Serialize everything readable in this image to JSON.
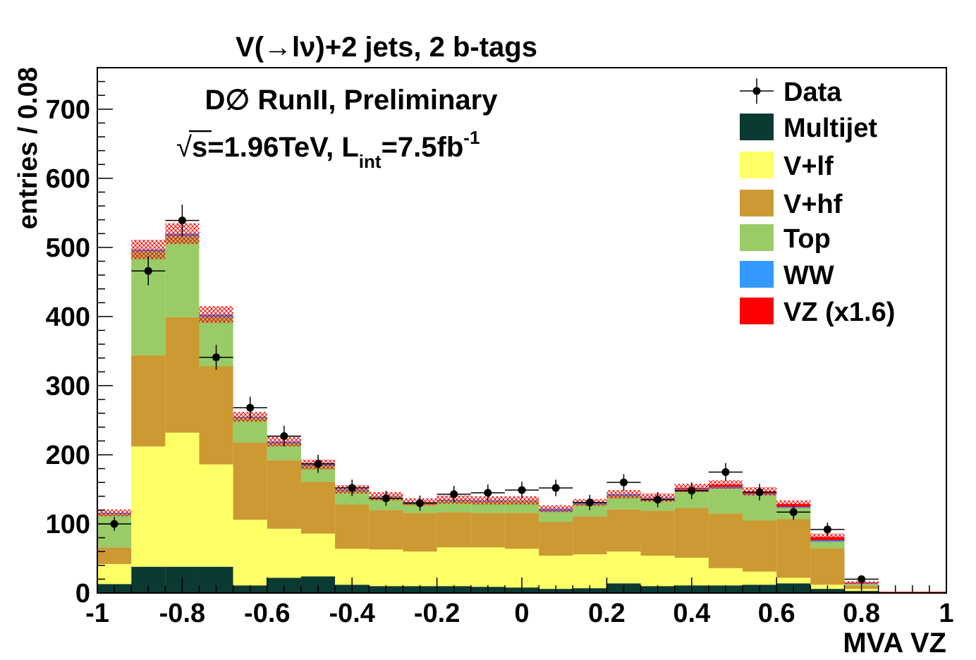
{
  "chart_data": {
    "type": "bar",
    "stacked": true,
    "title": "V(→lν)+2 jets, 2 b-tags",
    "experiment": "D∅ RunII, Preliminary",
    "energy": {
      "sqrt": "√",
      "main": "s=1.96TeV, L",
      "sub": "int",
      "mid": "=7.5fb",
      "sup": "-1"
    },
    "xlabel": "MVA VZ",
    "ylabel": "entries / 0.08",
    "xlim": [
      -1,
      1
    ],
    "ylim": [
      0,
      760
    ],
    "x_ticks": [
      "-1",
      "-0.8",
      "-0.6",
      "-0.4",
      "-0.2",
      "0",
      "0.2",
      "0.4",
      "0.6",
      "0.8",
      "1"
    ],
    "y_ticks": [
      "0",
      "100",
      "200",
      "300",
      "400",
      "500",
      "600",
      "700"
    ],
    "bin_width": 0.08,
    "bin_low_edges": [
      -1.0,
      -0.92,
      -0.84,
      -0.76,
      -0.68,
      -0.6,
      -0.52,
      -0.44,
      -0.36,
      -0.28,
      -0.2,
      -0.12,
      -0.04,
      0.04,
      0.12,
      0.2,
      0.28,
      0.36,
      0.44,
      0.52,
      0.6,
      0.68,
      0.76,
      0.84,
      0.92
    ],
    "series": [
      {
        "name": "Multijet",
        "color": "#0b3a32",
        "values": [
          13,
          38,
          38,
          38,
          11,
          22,
          24,
          12,
          10,
          10,
          10,
          9,
          8,
          6,
          7,
          14,
          10,
          11,
          11,
          12,
          14,
          6,
          3,
          0,
          0
        ]
      },
      {
        "name": "V+lf",
        "color": "#ffff66",
        "values": [
          29,
          174,
          194,
          148,
          95,
          71,
          62,
          52,
          53,
          50,
          56,
          57,
          56,
          48,
          49,
          46,
          44,
          40,
          25,
          19,
          8,
          6,
          3,
          0,
          0
        ]
      },
      {
        "name": "V+hf",
        "color": "#cc9933",
        "values": [
          24,
          132,
          167,
          142,
          112,
          99,
          75,
          64,
          57,
          56,
          51,
          50,
          52,
          49,
          55,
          61,
          65,
          72,
          79,
          74,
          85,
          53,
          5,
          0,
          0
        ]
      },
      {
        "name": "Top",
        "color": "#99cc66",
        "values": [
          48,
          150,
          117,
          71,
          35,
          24,
          23,
          20,
          19,
          15,
          16,
          16,
          17,
          15,
          17,
          19,
          17,
          25,
          36,
          37,
          16,
          9,
          2,
          0,
          0
        ]
      },
      {
        "name": "WW",
        "color": "#3399ff",
        "values": [
          2,
          3,
          4,
          4,
          2,
          3,
          2,
          2,
          1,
          1,
          2,
          2,
          1,
          4,
          3,
          3,
          2,
          3,
          3,
          2,
          2,
          2,
          1,
          0,
          0
        ]
      },
      {
        "name": "VZ (x1.6)",
        "color": "#ff0000",
        "values": [
          0,
          0,
          0,
          0,
          0,
          0,
          0,
          0,
          0,
          0,
          0,
          0,
          0,
          0,
          0,
          0,
          0,
          1,
          3,
          3,
          4,
          5,
          1,
          0,
          0
        ]
      }
    ],
    "uncertainty": [
      5,
      14,
      15,
      12,
      7,
      7,
      7,
      6,
      6,
      5,
      6,
      6,
      6,
      5,
      5,
      6,
      6,
      6,
      6,
      6,
      5,
      5,
      2,
      0,
      0
    ],
    "data": {
      "name": "Data",
      "x": [
        -0.96,
        -0.88,
        -0.8,
        -0.72,
        -0.64,
        -0.56,
        -0.48,
        -0.4,
        -0.32,
        -0.24,
        -0.16,
        -0.08,
        0.0,
        0.08,
        0.16,
        0.24,
        0.32,
        0.4,
        0.48,
        0.56,
        0.64,
        0.72,
        0.8
      ],
      "y": [
        100,
        466,
        539,
        341,
        268,
        227,
        187,
        152,
        137,
        130,
        143,
        145,
        149,
        152,
        131,
        160,
        135,
        148,
        175,
        146,
        117,
        92,
        20
      ],
      "yerr": [
        10,
        21,
        23,
        18,
        16,
        15,
        13,
        12,
        11,
        11,
        12,
        12,
        12,
        12,
        11,
        12,
        11,
        12,
        13,
        12,
        11,
        10,
        4
      ]
    },
    "legend": {
      "position": "top-right",
      "entries": [
        {
          "label": "Data",
          "kind": "marker",
          "color": "#000000"
        },
        {
          "label": "Multijet",
          "kind": "box",
          "color": "#0b3a32"
        },
        {
          "label": "V+lf",
          "kind": "box",
          "color": "#ffff66"
        },
        {
          "label": "V+hf",
          "kind": "box",
          "color": "#cc9933"
        },
        {
          "label": "Top",
          "kind": "box",
          "color": "#99cc66"
        },
        {
          "label": "WW",
          "kind": "box",
          "color": "#3399ff"
        },
        {
          "label": "VZ (x1.6)",
          "kind": "box",
          "color": "#ff0000"
        }
      ]
    },
    "uncertainty_color": "#ff0000"
  }
}
